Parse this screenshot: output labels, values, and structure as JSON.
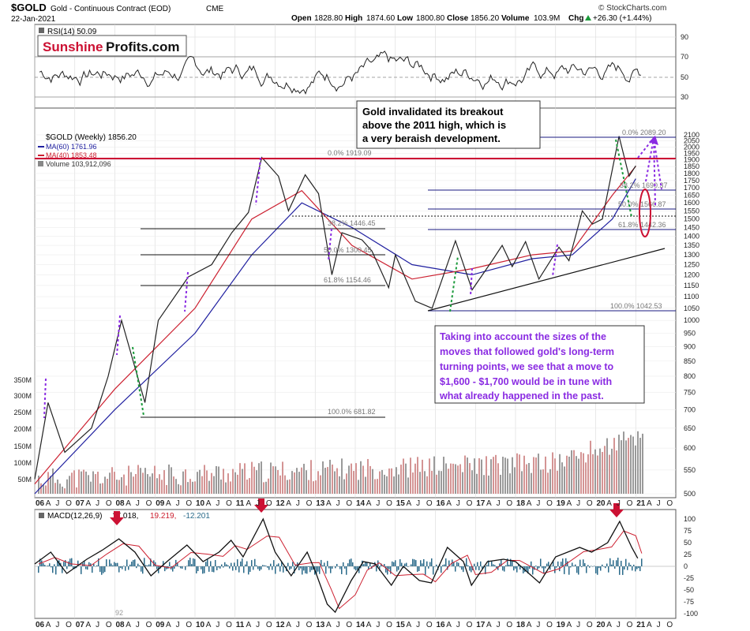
{
  "header": {
    "symbol": "$GOLD",
    "name": "Gold - Continuous Contract (EOD)",
    "exchange": "CME",
    "date": "22-Jan-2021",
    "open_label": "Open",
    "open": "1828.80",
    "high_label": "High",
    "high": "1874.60",
    "low_label": "Low",
    "low": "1800.80",
    "close_label": "Close",
    "close": "1856.20",
    "volume_label": "Volume",
    "volume": "103.9M",
    "chg_label": "Chg",
    "chg": "+26.30 (+1.44%)",
    "credit": "© StockCharts.com",
    "up_icon": "triangle-up-icon"
  },
  "logo": {
    "part1": "Sunshine",
    "part2": "Profits.com"
  },
  "rsi": {
    "label": "RSI(14) 50.09",
    "ticks": [
      "90",
      "70",
      "50",
      "30"
    ]
  },
  "price": {
    "legend_title": "$GOLD (Weekly) 1856.20",
    "ma60": "MA(60) 1761.96",
    "ma40": "MA(40) 1853.48",
    "volume": "Volume 103,912,096",
    "ticks": [
      "2100",
      "2050",
      "2000",
      "1950",
      "1900",
      "1850",
      "1800",
      "1750",
      "1700",
      "1650",
      "1600",
      "1550",
      "1500",
      "1450",
      "1400",
      "1350",
      "1300",
      "1250",
      "1200",
      "1150",
      "1100",
      "1050",
      "1000",
      "950",
      "900",
      "850",
      "800",
      "750",
      "700",
      "650",
      "600",
      "550",
      "500"
    ],
    "volume_ticks": [
      "350M",
      "300M",
      "250M",
      "200M",
      "150M",
      "100M",
      "50M"
    ]
  },
  "fib_labels": {
    "a": "0.0% 1919.09",
    "b": "38.2% 1446.45",
    "c": "50.0% 1300.45",
    "d": "61.8% 1154.46",
    "e": "100.0% 681.82",
    "f": "0.0% 2089.20",
    "g": "38.2% 1690.37",
    "h": "50.0% 1566.87",
    "i": "61.8% 1442.36",
    "j": "100.0% 1042.53"
  },
  "annotations": {
    "box1": [
      "Gold invalidated its breakout",
      "above the 2011 high, which is",
      "a very beraish development."
    ],
    "box2": [
      "Taking into account the sizes of the",
      "moves that followed gold's long-term",
      "turning points, we see that a move to",
      "$1,600 - $1,700 would be in tune with",
      "what already happened in the past."
    ]
  },
  "macd": {
    "label": "MACD(12,26,9)",
    "v1": "17.018,",
    "v2": "19.219,",
    "v3": "-12.201",
    "ticks": [
      "100",
      "75",
      "50",
      "25",
      "0",
      "-25",
      "-50",
      "-75",
      "-100"
    ],
    "bottom_note": "92"
  },
  "x_axis": [
    {
      "t": "06",
      "b": true
    },
    {
      "t": "A"
    },
    {
      "t": "J"
    },
    {
      "t": "O"
    },
    {
      "t": "07",
      "b": true
    },
    {
      "t": "A"
    },
    {
      "t": "J"
    },
    {
      "t": "O"
    },
    {
      "t": "08",
      "b": true
    },
    {
      "t": "A"
    },
    {
      "t": "J"
    },
    {
      "t": "O"
    },
    {
      "t": "09",
      "b": true
    },
    {
      "t": "A"
    },
    {
      "t": "J"
    },
    {
      "t": "O"
    },
    {
      "t": "10",
      "b": true
    },
    {
      "t": "A"
    },
    {
      "t": "J"
    },
    {
      "t": "O"
    },
    {
      "t": "11",
      "b": true
    },
    {
      "t": "A"
    },
    {
      "t": "J"
    },
    {
      "t": "O"
    },
    {
      "t": "12",
      "b": true
    },
    {
      "t": "A"
    },
    {
      "t": "J"
    },
    {
      "t": "O"
    },
    {
      "t": "13",
      "b": true
    },
    {
      "t": "A"
    },
    {
      "t": "J"
    },
    {
      "t": "O"
    },
    {
      "t": "14",
      "b": true
    },
    {
      "t": "A"
    },
    {
      "t": "J"
    },
    {
      "t": "O"
    },
    {
      "t": "15",
      "b": true
    },
    {
      "t": "A"
    },
    {
      "t": "J"
    },
    {
      "t": "O"
    },
    {
      "t": "16",
      "b": true
    },
    {
      "t": "A"
    },
    {
      "t": "J"
    },
    {
      "t": "O"
    },
    {
      "t": "17",
      "b": true
    },
    {
      "t": "A"
    },
    {
      "t": "J"
    },
    {
      "t": "O"
    },
    {
      "t": "18",
      "b": true
    },
    {
      "t": "A"
    },
    {
      "t": "J"
    },
    {
      "t": "O"
    },
    {
      "t": "19",
      "b": true
    },
    {
      "t": "A"
    },
    {
      "t": "J"
    },
    {
      "t": "O"
    },
    {
      "t": "20",
      "b": true
    },
    {
      "t": "A"
    },
    {
      "t": "J"
    },
    {
      "t": "O"
    },
    {
      "t": "21",
      "b": true
    },
    {
      "t": "A"
    },
    {
      "t": "J"
    },
    {
      "t": "O"
    }
  ],
  "colors": {
    "price_line": "#222222",
    "ma60": "#2020a0",
    "ma40": "#cc2030",
    "resistance": "#cc0033",
    "fib": "#1a1a80",
    "annotation_purple": "#8a2be2",
    "volume_up": "#9a9a9a",
    "volume_down": "#d49494",
    "histogram": "#2a6a8a",
    "arrow": "#cc1133",
    "green_dash": "#1a9a3a",
    "grid": "#d8d8d8"
  },
  "chart_data": {
    "type": "line",
    "title": "$GOLD Gold - Continuous Contract (EOD) CME",
    "xlabel": "",
    "ylabel": "",
    "x_range": [
      "2006-01",
      "2021-12"
    ],
    "ylim": [
      500,
      2100
    ],
    "y_scale": "log",
    "grid": true,
    "legend": "top-left",
    "series": [
      {
        "name": "$GOLD (Weekly)",
        "x": [
          "2006-01",
          "2006-05",
          "2006-10",
          "2007-06",
          "2007-11",
          "2008-03",
          "2008-10",
          "2009-02",
          "2009-11",
          "2010-06",
          "2010-12",
          "2011-05",
          "2011-09",
          "2012-02",
          "2012-05",
          "2012-10",
          "2013-02",
          "2013-06",
          "2013-09",
          "2014-03",
          "2014-06",
          "2014-11",
          "2015-01",
          "2015-07",
          "2015-12",
          "2016-07",
          "2016-12",
          "2017-06",
          "2017-09",
          "2017-12",
          "2018-04",
          "2018-08",
          "2019-02",
          "2019-05",
          "2019-09",
          "2019-12",
          "2020-03",
          "2020-08",
          "2020-11",
          "2021-01"
        ],
        "values": [
          530,
          720,
          590,
          650,
          800,
          1000,
          720,
          1000,
          1190,
          1250,
          1420,
          1540,
          1919,
          1780,
          1550,
          1790,
          1660,
          1200,
          1420,
          1380,
          1320,
          1140,
          1300,
          1080,
          1050,
          1375,
          1130,
          1270,
          1350,
          1240,
          1370,
          1180,
          1340,
          1270,
          1550,
          1470,
          1500,
          2089,
          1780,
          1856
        ]
      },
      {
        "name": "MA(60)",
        "x": [
          "2006-01",
          "2008-01",
          "2010-01",
          "2011-06",
          "2012-09",
          "2013-12",
          "2015-06",
          "2016-12",
          "2018-06",
          "2019-06",
          "2020-06",
          "2021-01"
        ],
        "values": [
          500,
          700,
          950,
          1300,
          1600,
          1450,
          1250,
          1200,
          1280,
          1300,
          1500,
          1762
        ]
      },
      {
        "name": "MA(40)",
        "x": [
          "2006-01",
          "2008-01",
          "2010-01",
          "2011-06",
          "2012-09",
          "2013-12",
          "2015-06",
          "2016-12",
          "2018-06",
          "2019-06",
          "2020-06",
          "2021-01"
        ],
        "values": [
          520,
          760,
          1050,
          1500,
          1680,
          1350,
          1180,
          1230,
          1300,
          1320,
          1650,
          1853
        ]
      }
    ],
    "rsi": {
      "name": "RSI(14)",
      "last": 50.09,
      "levels": [
        30,
        50,
        70
      ]
    },
    "macd": {
      "name": "MACD(12,26,9)",
      "values": [
        17.018,
        19.219,
        -12.201
      ],
      "ylim": [
        -100,
        100
      ]
    },
    "horizontal_lines": [
      1919.09
    ],
    "fibonacci_levels_2011": [
      1919.09,
      1446.45,
      1300.45,
      1154.46,
      681.82
    ],
    "fibonacci_levels_2020": [
      2089.2,
      1690.37,
      1566.87,
      1442.36,
      1042.53
    ]
  }
}
